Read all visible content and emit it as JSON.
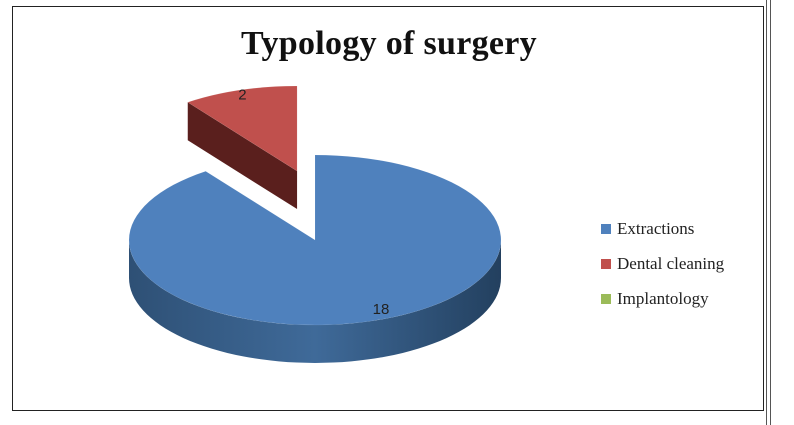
{
  "chart_data": {
    "type": "pie",
    "title": "Typology of surgery",
    "categories": [
      "Extractions",
      "Dental cleaning",
      "Implantology"
    ],
    "values": [
      18,
      2,
      0
    ],
    "data_labels": [
      "18",
      "2",
      ""
    ],
    "exploded": [
      "Dental cleaning"
    ],
    "style": "3d",
    "legend": "right",
    "colors": [
      "#4F81BD",
      "#C0504D",
      "#9BBB59"
    ]
  }
}
